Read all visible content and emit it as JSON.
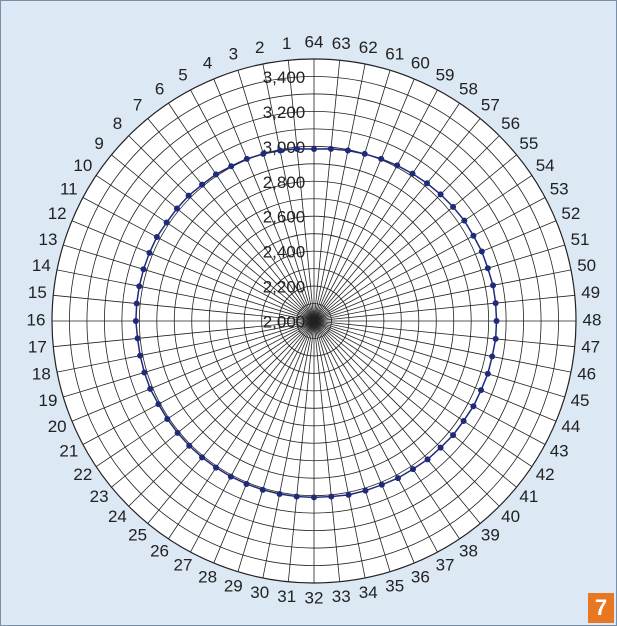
{
  "chart_data": {
    "type": "radar",
    "badge": "7",
    "categories": [
      "1",
      "2",
      "3",
      "4",
      "5",
      "6",
      "7",
      "8",
      "9",
      "10",
      "11",
      "12",
      "13",
      "14",
      "15",
      "16",
      "17",
      "18",
      "19",
      "20",
      "21",
      "22",
      "23",
      "24",
      "25",
      "26",
      "27",
      "28",
      "29",
      "30",
      "31",
      "32",
      "33",
      "34",
      "35",
      "36",
      "37",
      "38",
      "39",
      "40",
      "41",
      "42",
      "43",
      "44",
      "45",
      "46",
      "47",
      "48",
      "49",
      "50",
      "51",
      "52",
      "53",
      "54",
      "55",
      "56",
      "57",
      "58",
      "59",
      "60",
      "61",
      "62",
      "63",
      "64"
    ],
    "series": [
      {
        "color": "#1f2a7a",
        "values": [
          2990,
          2995,
          3000,
          3005,
          3005,
          3010,
          3010,
          3015,
          3015,
          3015,
          3020,
          3020,
          3020,
          3020,
          3020,
          3020,
          3015,
          3015,
          3015,
          3015,
          3010,
          3010,
          3010,
          3010,
          3010,
          3010,
          3010,
          3010,
          3010,
          3010,
          3010,
          3010,
          3010,
          3015,
          3015,
          3015,
          3020,
          3020,
          3025,
          3025,
          3030,
          3030,
          3035,
          3035,
          3040,
          3040,
          3045,
          3045,
          3045,
          3045,
          3040,
          3040,
          3035,
          3035,
          3030,
          3025,
          3020,
          3015,
          3010,
          3005,
          3000,
          2995,
          2990,
          2985
        ]
      }
    ],
    "ylim": [
      2000,
      3500
    ],
    "yticks": [
      {
        "value": 2000,
        "label": "2,000"
      },
      {
        "value": 2200,
        "label": "2,200"
      },
      {
        "value": 2400,
        "label": "2,400"
      },
      {
        "value": 2600,
        "label": "2,600"
      },
      {
        "value": 2800,
        "label": "2,800"
      },
      {
        "value": 3000,
        "label": "3,000"
      },
      {
        "value": 3200,
        "label": "3,200"
      },
      {
        "value": 3400,
        "label": "3,400"
      }
    ],
    "grid": true
  }
}
